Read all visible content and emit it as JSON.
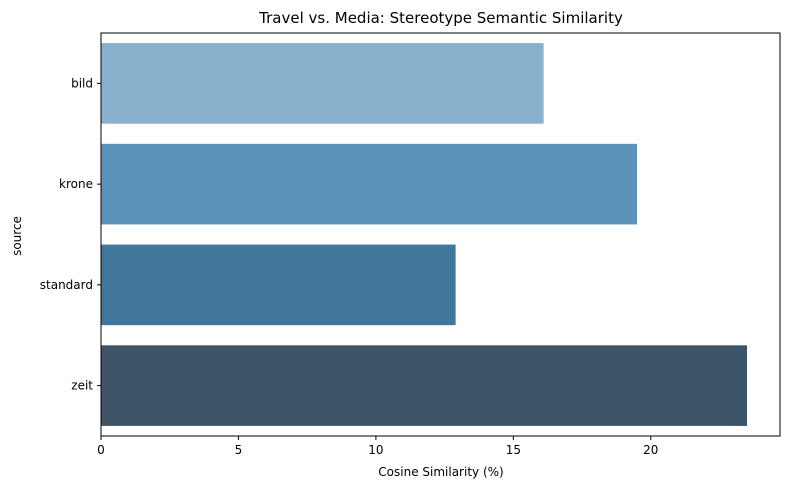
{
  "chart_data": {
    "type": "bar",
    "orientation": "horizontal",
    "title": "Travel vs. Media: Stereotype Semantic Similarity",
    "xlabel": "Cosine Similarity (%)",
    "ylabel": "source",
    "categories": [
      "bild",
      "krone",
      "standard",
      "zeit"
    ],
    "values": [
      16.1,
      19.5,
      12.9,
      23.5
    ],
    "colors": [
      "#89b0cc",
      "#5b93bb",
      "#42769a",
      "#3d5469"
    ],
    "xlim": [
      0,
      24.7
    ],
    "xticks": [
      0,
      5,
      10,
      15,
      20
    ],
    "grid": false,
    "legend": "none"
  }
}
